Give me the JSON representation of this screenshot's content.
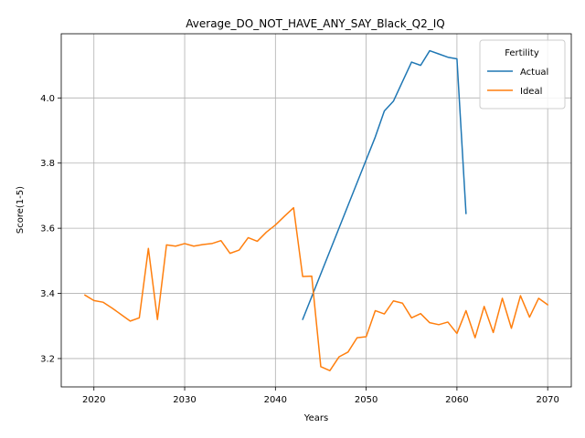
{
  "chart_data": {
    "type": "line",
    "title": "Average_DO_NOT_HAVE_ANY_SAY_Black_Q2_IQ",
    "xlabel": "Years",
    "ylabel": "Score(1-5)",
    "xlim": [
      2016.4,
      2072.6
    ],
    "ylim": [
      3.113,
      4.197
    ],
    "xticks": [
      2020,
      2030,
      2040,
      2050,
      2060,
      2070
    ],
    "yticks": [
      3.2,
      3.4,
      3.6,
      3.8,
      4.0
    ],
    "ytick_labels": [
      "3.2",
      "3.4",
      "3.6",
      "3.8",
      "4.0"
    ],
    "grid": true,
    "legend": {
      "title": "Fertility",
      "placement": "top-right"
    },
    "series": [
      {
        "name": "Actual",
        "color": "#1f77b4",
        "x": [
          2043,
          2044,
          2045,
          2046,
          2047,
          2048,
          2049,
          2050,
          2051,
          2052,
          2053,
          2054,
          2055,
          2056,
          2057,
          2058,
          2059,
          2060,
          2061
        ],
        "y": [
          3.32,
          3.39,
          3.46,
          3.53,
          3.6,
          3.67,
          3.74,
          3.81,
          3.88,
          3.96,
          3.99,
          4.05,
          4.11,
          4.1,
          4.145,
          4.135,
          4.125,
          4.12,
          3.645
        ]
      },
      {
        "name": "Ideal",
        "color": "#ff7f0e",
        "x": [
          2019,
          2020,
          2021,
          2022,
          2023,
          2024,
          2025,
          2026,
          2027,
          2028,
          2029,
          2030,
          2031,
          2032,
          2033,
          2034,
          2035,
          2036,
          2037,
          2038,
          2039,
          2040,
          2041,
          2042,
          2043,
          2044,
          2045,
          2046,
          2047,
          2048,
          2049,
          2050,
          2051,
          2052,
          2053,
          2054,
          2055,
          2056,
          2057,
          2058,
          2059,
          2060,
          2061,
          2062,
          2063,
          2064,
          2065,
          2066,
          2067,
          2068,
          2069,
          2070
        ],
        "y": [
          3.395,
          3.378,
          3.373,
          3.355,
          3.335,
          3.315,
          3.325,
          3.538,
          3.32,
          3.549,
          3.545,
          3.553,
          3.545,
          3.55,
          3.553,
          3.562,
          3.523,
          3.533,
          3.571,
          3.56,
          3.588,
          3.61,
          3.637,
          3.663,
          3.452,
          3.453,
          3.175,
          3.163,
          3.205,
          3.22,
          3.264,
          3.267,
          3.347,
          3.337,
          3.377,
          3.37,
          3.325,
          3.338,
          3.31,
          3.304,
          3.312,
          3.277,
          3.347,
          3.264,
          3.36,
          3.28,
          3.385,
          3.293,
          3.393,
          3.327,
          3.385,
          3.365
        ]
      }
    ]
  }
}
